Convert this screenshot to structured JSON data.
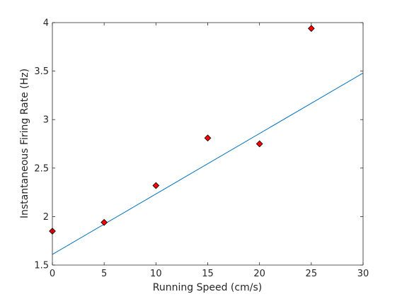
{
  "chart_data": {
    "type": "scatter",
    "xlabel": "Running Speed (cm/s)",
    "ylabel": "Instantaneous Firing Rate (Hz)",
    "xlim": [
      0,
      30
    ],
    "ylim": [
      1.5,
      4
    ],
    "xticks": [
      0,
      5,
      10,
      15,
      20,
      25,
      30
    ],
    "yticks": [
      1.5,
      2,
      2.5,
      3,
      3.5,
      4
    ],
    "xtick_labels": [
      "0",
      "5",
      "10",
      "15",
      "20",
      "25",
      "30"
    ],
    "ytick_labels": [
      "1.5",
      "2",
      "2.5",
      "3",
      "3.5",
      "4"
    ],
    "grid": false,
    "series": [
      {
        "type": "scatter",
        "x": [
          0,
          5,
          10,
          15,
          20,
          25
        ],
        "y": [
          1.85,
          1.94,
          2.32,
          2.81,
          2.75,
          3.94
        ],
        "marker": "diamond",
        "color": "#ff0000",
        "edgecolor": "#000000"
      },
      {
        "type": "line",
        "x": [
          0,
          30
        ],
        "y": [
          1.61,
          3.48
        ],
        "color": "#0072bd"
      }
    ]
  }
}
